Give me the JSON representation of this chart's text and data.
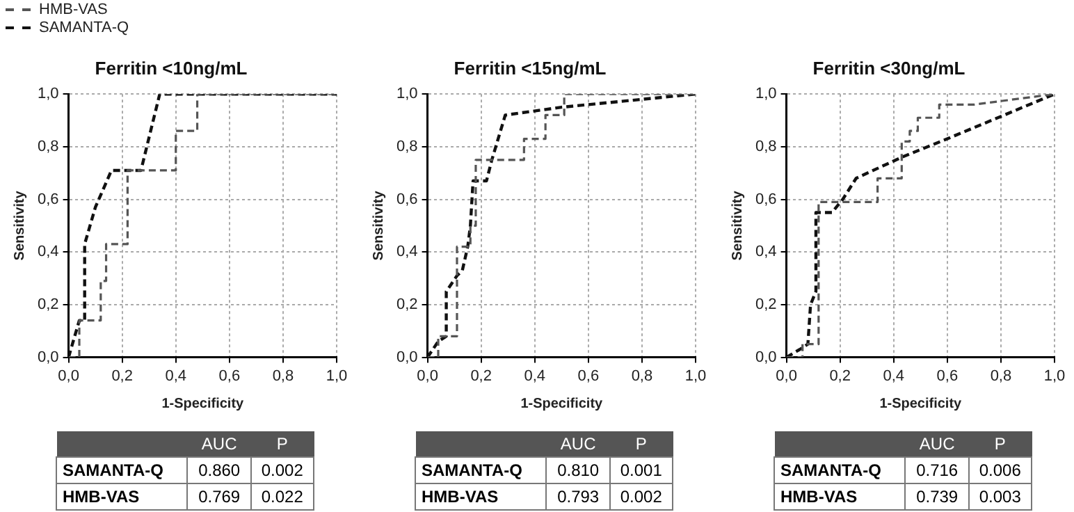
{
  "chart_data": [
    {
      "type": "line",
      "title": "Ferritin <10ng/mL",
      "xlabel": "1-Specificity",
      "ylabel": "Sensitivity",
      "legend": "top left",
      "grid": true,
      "line_style": "dashed",
      "marker": "none",
      "xlim": [
        0,
        1
      ],
      "ylim": [
        0,
        1
      ],
      "xticks": [
        {
          "value": 0,
          "label": "0,0"
        },
        {
          "value": 0.2,
          "label": "0,2"
        },
        {
          "value": 0.4,
          "label": "0,4"
        },
        {
          "value": 0.6,
          "label": "0,6"
        },
        {
          "value": 0.8,
          "label": "0,8"
        },
        {
          "value": 1,
          "label": "1,0"
        }
      ],
      "yticks": [
        {
          "value": 0,
          "label": "0,0"
        },
        {
          "value": 0.2,
          "label": "0,2"
        },
        {
          "value": 0.4,
          "label": "0,4"
        },
        {
          "value": 0.6,
          "label": "0,6"
        },
        {
          "value": 0.8,
          "label": "0,8"
        },
        {
          "value": 1,
          "label": "1,0"
        }
      ],
      "series": [
        {
          "name": "HMB-VAS",
          "color": "#555555",
          "x": [
            0,
            0.04,
            0.04,
            0.12,
            0.12,
            0.14,
            0.14,
            0.22,
            0.22,
            0.4,
            0.4,
            0.48,
            0.48,
            1
          ],
          "values": [
            0,
            0,
            0.14,
            0.14,
            0.29,
            0.29,
            0.43,
            0.43,
            0.71,
            0.71,
            0.86,
            0.86,
            1,
            1
          ]
        },
        {
          "name": "SAMANTA-Q",
          "color": "#111111",
          "x": [
            0,
            0.04,
            0.06,
            0.06,
            0.1,
            0.16,
            0.27,
            0.34,
            1
          ],
          "values": [
            0,
            0.14,
            0.14,
            0.43,
            0.57,
            0.71,
            0.71,
            1,
            1
          ]
        }
      ],
      "annotations": [
        "AUC",
        "P",
        "SAMANTA-Q",
        "0.860",
        "0.002",
        "HMB-VAS",
        "0.769",
        "0.022"
      ]
    },
    {
      "type": "line",
      "title": "Ferritin <15ng/mL",
      "xlabel": "1-Specificity",
      "ylabel": "Sensitivity",
      "grid": true,
      "line_style": "dashed",
      "marker": "none",
      "xlim": [
        0,
        1
      ],
      "ylim": [
        0,
        1
      ],
      "xticks": [
        {
          "value": 0,
          "label": "0,0"
        },
        {
          "value": 0.2,
          "label": "0,2"
        },
        {
          "value": 0.4,
          "label": "0,4"
        },
        {
          "value": 0.6,
          "label": "0,6"
        },
        {
          "value": 0.8,
          "label": "0,8"
        },
        {
          "value": 1,
          "label": "1,0"
        }
      ],
      "yticks": [
        {
          "value": 0,
          "label": "0,0"
        },
        {
          "value": 0.2,
          "label": "0,2"
        },
        {
          "value": 0.4,
          "label": "0,4"
        },
        {
          "value": 0.6,
          "label": "0,6"
        },
        {
          "value": 0.8,
          "label": "0,8"
        },
        {
          "value": 1,
          "label": "1,0"
        }
      ],
      "series": [
        {
          "color": "#555555",
          "x": [
            0,
            0.04,
            0.04,
            0.11,
            0.11,
            0.16,
            0.16,
            0.18,
            0.18,
            0.36,
            0.36,
            0.44,
            0.44,
            0.51,
            0.51,
            1
          ],
          "values": [
            0,
            0,
            0.08,
            0.08,
            0.42,
            0.42,
            0.5,
            0.5,
            0.75,
            0.75,
            0.83,
            0.83,
            0.92,
            0.92,
            1,
            1
          ]
        },
        {
          "color": "#111111",
          "x": [
            0,
            0.04,
            0.07,
            0.07,
            0.11,
            0.13,
            0.15,
            0.16,
            0.17,
            0.22,
            0.24,
            0.29,
            0.5,
            1
          ],
          "values": [
            0,
            0.06,
            0.08,
            0.25,
            0.31,
            0.33,
            0.42,
            0.5,
            0.67,
            0.67,
            0.75,
            0.92,
            0.95,
            1
          ]
        }
      ],
      "annotations": [
        "AUC",
        "P",
        "SAMANTA-Q",
        "0.810",
        "0.001",
        "HMB-VAS",
        "0.793",
        "0.002"
      ]
    },
    {
      "type": "line",
      "title": "Ferritin <30ng/mL",
      "xlabel": "1-Specificity",
      "ylabel": "Sensitivity",
      "grid": true,
      "line_style": "dashed",
      "marker": "none",
      "xlim": [
        0,
        1
      ],
      "ylim": [
        0,
        1
      ],
      "xticks": [
        {
          "value": 0,
          "label": "0,0"
        },
        {
          "value": 0.2,
          "label": "0,2"
        },
        {
          "value": 0.4,
          "label": "0,4"
        },
        {
          "value": 0.6,
          "label": "0,6"
        },
        {
          "value": 0.8,
          "label": "0,8"
        },
        {
          "value": 1,
          "label": "1,0"
        }
      ],
      "yticks": [
        {
          "value": 0,
          "label": "0,0"
        },
        {
          "value": 0.2,
          "label": "0,2"
        },
        {
          "value": 0.4,
          "label": "0,4"
        },
        {
          "value": 0.6,
          "label": "0,6"
        },
        {
          "value": 0.8,
          "label": "0,8"
        },
        {
          "value": 1,
          "label": "1,0"
        }
      ],
      "series": [
        {
          "color": "#555555",
          "x": [
            0,
            0.06,
            0.06,
            0.12,
            0.12,
            0.34,
            0.34,
            0.43,
            0.43,
            0.46,
            0.46,
            0.49,
            0.49,
            0.57,
            0.57,
            0.7,
            1
          ],
          "values": [
            0,
            0,
            0.05,
            0.05,
            0.59,
            0.59,
            0.68,
            0.68,
            0.82,
            0.82,
            0.86,
            0.86,
            0.91,
            0.91,
            0.96,
            0.96,
            1
          ]
        },
        {
          "color": "#111111",
          "x": [
            0,
            0.05,
            0.08,
            0.09,
            0.11,
            0.11,
            0.17,
            0.21,
            0.26,
            0.43,
            0.6,
            1
          ],
          "values": [
            0,
            0.03,
            0.05,
            0.2,
            0.25,
            0.55,
            0.55,
            0.6,
            0.68,
            0.76,
            0.83,
            1
          ]
        }
      ],
      "annotations": [
        "AUC",
        "P",
        "SAMANTA-Q",
        "0.716",
        "0.006",
        "HMB-VAS",
        "0.739",
        "0.003"
      ]
    }
  ]
}
